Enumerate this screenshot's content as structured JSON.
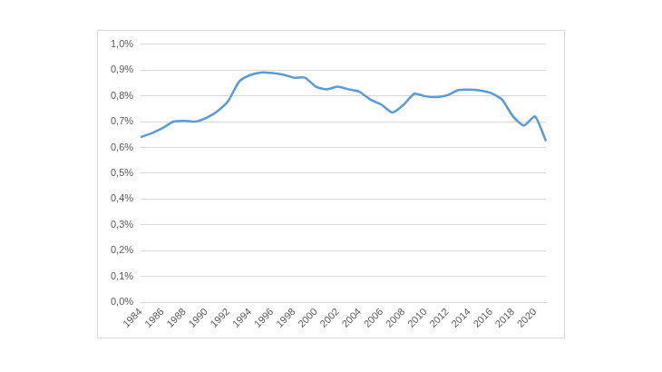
{
  "chart_data": {
    "type": "line",
    "categories": [
      1984,
      null,
      1986,
      null,
      1988,
      null,
      1990,
      null,
      1992,
      null,
      1994,
      null,
      1996,
      null,
      1998,
      null,
      2000,
      null,
      2002,
      null,
      2004,
      null,
      2006,
      null,
      2008,
      null,
      2010,
      null,
      2012,
      null,
      2014,
      null,
      2016,
      null,
      2018,
      null,
      2020,
      null
    ],
    "values": [
      0.64,
      0.655,
      0.675,
      0.7,
      0.703,
      0.7,
      0.715,
      0.74,
      0.78,
      0.855,
      0.88,
      0.89,
      0.888,
      0.882,
      0.87,
      0.87,
      0.835,
      0.825,
      0.835,
      0.825,
      0.815,
      0.785,
      0.765,
      0.735,
      0.765,
      0.808,
      0.798,
      0.795,
      0.802,
      0.822,
      0.824,
      0.82,
      0.81,
      0.785,
      0.72,
      0.685,
      0.72,
      0.625
    ],
    "color": "#5b9bd5",
    "ylim": [
      0,
      1
    ],
    "yticks": [
      {
        "value": 0,
        "label": "0,0%"
      },
      {
        "value": 0.1,
        "label": "0,1%"
      },
      {
        "value": 0.2,
        "label": "0,2%"
      },
      {
        "value": 0.3,
        "label": "0,3%"
      },
      {
        "value": 0.4,
        "label": "0,4%"
      },
      {
        "value": 0.5,
        "label": "0,5%"
      },
      {
        "value": 0.6,
        "label": "0,6%"
      },
      {
        "value": 0.7,
        "label": "0,7%"
      },
      {
        "value": 0.8,
        "label": "0,8%"
      },
      {
        "value": 0.9,
        "label": "0,9%"
      },
      {
        "value": 1,
        "label": "1,0%"
      }
    ],
    "grid": true
  }
}
